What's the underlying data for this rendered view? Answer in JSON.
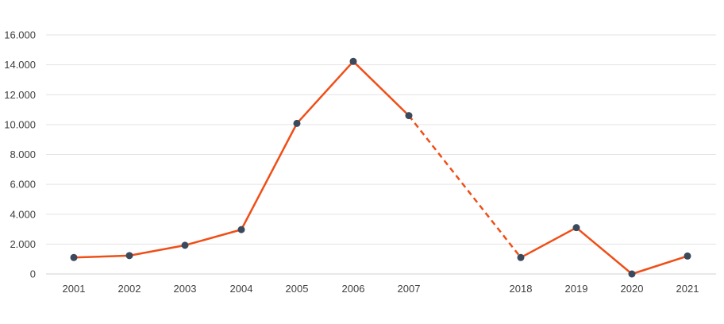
{
  "chart_data": {
    "type": "line",
    "categories": [
      "2001",
      "2002",
      "2003",
      "2004",
      "2005",
      "2006",
      "2007",
      "2018",
      "2019",
      "2020",
      "2021"
    ],
    "values": [
      1100,
      1230,
      1920,
      2970,
      10080,
      14230,
      10600,
      1100,
      3100,
      0,
      1200
    ],
    "gap_after_index": 6,
    "y_ticks": [
      "16.000",
      "14.000",
      "12.000",
      "10.000",
      "8.000",
      "6.000",
      "4.000",
      "2.000",
      "0"
    ],
    "ylim": [
      0,
      16000
    ],
    "grid": true,
    "colors": {
      "line": "#f04e17",
      "marker": "#3a4a5c",
      "grid": "#e3e3e3",
      "text": "#404040"
    }
  }
}
